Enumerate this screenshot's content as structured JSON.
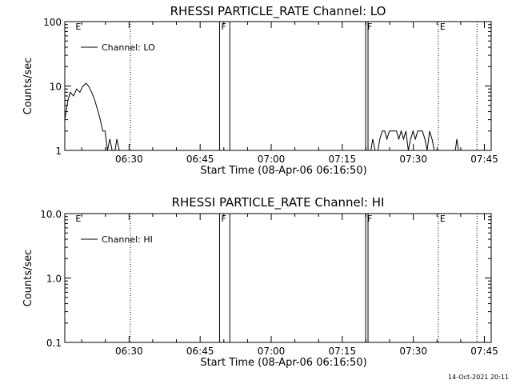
{
  "footer": {
    "timestamp": "14-Oct-2021 20:11"
  },
  "chart_data": [
    {
      "type": "line",
      "title": "RHESSI PARTICLE_RATE Channel: LO",
      "xlabel": "Start Time (08-Apr-06 06:16:50)",
      "ylabel": "Counts/sec",
      "yscale": "log",
      "xlim": [
        0,
        5400
      ],
      "ylim": [
        1,
        100
      ],
      "x_ticks": [
        {
          "t": 814,
          "label": "06:30"
        },
        {
          "t": 1714,
          "label": "06:45"
        },
        {
          "t": 2614,
          "label": "07:00"
        },
        {
          "t": 3514,
          "label": "07:15"
        },
        {
          "t": 4414,
          "label": "07:30"
        },
        {
          "t": 5314,
          "label": "07:45"
        }
      ],
      "y_ticks": [
        {
          "v": 1,
          "label": "1"
        },
        {
          "v": 10,
          "label": "10"
        },
        {
          "v": 100,
          "label": "100"
        }
      ],
      "legend": {
        "label": "Channel: LO",
        "position": "top-left"
      },
      "grid": false,
      "series": [
        {
          "name": "Channel: LO",
          "x": [
            0,
            40,
            70,
            110,
            150,
            190,
            230,
            270,
            300,
            340,
            380,
            420,
            450,
            480,
            510,
            540,
            570,
            600,
            630,
            660,
            690,
            720,
            3870,
            3900,
            3930,
            3960,
            3990,
            4020,
            4050,
            4080,
            4110,
            4140,
            4170,
            4200,
            4230,
            4260,
            4290,
            4320,
            4350,
            4380,
            4410,
            4440,
            4470,
            4500,
            4530,
            4560,
            4590,
            4620,
            4650,
            4680,
            4710,
            4940,
            4965,
            4990
          ],
          "y": [
            3,
            6,
            8,
            7,
            9,
            8,
            10,
            11,
            10,
            8,
            6,
            4,
            3,
            2,
            2,
            1,
            1.5,
            1,
            0.9,
            1.5,
            1,
            0.9,
            0.9,
            1.5,
            1,
            0.9,
            1.5,
            2,
            2,
            1.5,
            2,
            2,
            2,
            2,
            1.5,
            2,
            1.5,
            2,
            1,
            1.5,
            2,
            1.5,
            2,
            2,
            2,
            1.5,
            1,
            2,
            1.5,
            1,
            0.9,
            0.9,
            1.5,
            0.9
          ]
        }
      ],
      "annotations": [
        {
          "t": 115,
          "label": "E",
          "style": "none"
        },
        {
          "t": 830,
          "label": "",
          "style": "dotted"
        },
        {
          "t": 1960,
          "label": "F",
          "style": "solid"
        },
        {
          "t": 2090,
          "label": "",
          "style": "solid"
        },
        {
          "t": 3810,
          "label": "F",
          "style": "solid"
        },
        {
          "t": 3840,
          "label": "",
          "style": "solid"
        },
        {
          "t": 4730,
          "label": "E",
          "style": "dotted"
        },
        {
          "t": 5220,
          "label": "",
          "style": "dotted"
        }
      ]
    },
    {
      "type": "line",
      "title": "RHESSI PARTICLE_RATE Channel: HI",
      "xlabel": "Start Time (08-Apr-06 06:16:50)",
      "ylabel": "Counts/sec",
      "yscale": "log",
      "xlim": [
        0,
        5400
      ],
      "ylim": [
        0.1,
        10
      ],
      "x_ticks": [
        {
          "t": 814,
          "label": "06:30"
        },
        {
          "t": 1714,
          "label": "06:45"
        },
        {
          "t": 2614,
          "label": "07:00"
        },
        {
          "t": 3514,
          "label": "07:15"
        },
        {
          "t": 4414,
          "label": "07:30"
        },
        {
          "t": 5314,
          "label": "07:45"
        }
      ],
      "y_ticks": [
        {
          "v": 0.1,
          "label": "0.1"
        },
        {
          "v": 1,
          "label": "1.0"
        },
        {
          "v": 10,
          "label": "10.0"
        }
      ],
      "legend": {
        "label": "Channel: HI",
        "position": "top-left"
      },
      "grid": false,
      "series": [
        {
          "name": "Channel: HI",
          "x": [],
          "y": []
        }
      ],
      "annotations": [
        {
          "t": 115,
          "label": "E",
          "style": "none"
        },
        {
          "t": 830,
          "label": "",
          "style": "dotted"
        },
        {
          "t": 1960,
          "label": "F",
          "style": "solid"
        },
        {
          "t": 2090,
          "label": "",
          "style": "solid"
        },
        {
          "t": 3810,
          "label": "F",
          "style": "solid"
        },
        {
          "t": 3840,
          "label": "",
          "style": "solid"
        },
        {
          "t": 4730,
          "label": "E",
          "style": "dotted"
        },
        {
          "t": 5220,
          "label": "",
          "style": "dotted"
        }
      ]
    }
  ]
}
